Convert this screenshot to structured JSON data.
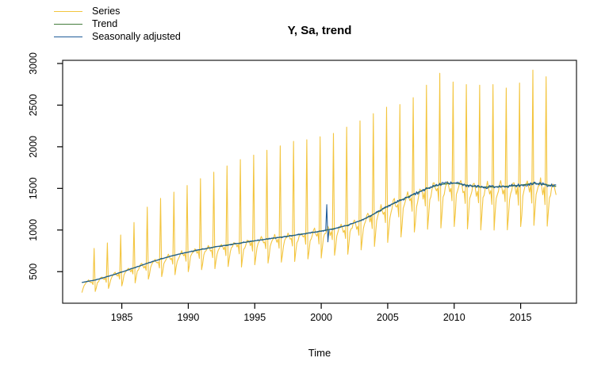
{
  "window": {
    "background": "#ffffff"
  },
  "chart_data": {
    "type": "line",
    "title": "Y, Sa, trend",
    "xlabel": "Time",
    "ylabel": "",
    "x_ticks": [
      1985,
      1990,
      1995,
      2000,
      2005,
      2010,
      2015
    ],
    "y_ticks": [
      500,
      1000,
      1500,
      2000,
      2500,
      3000
    ],
    "xlim": [
      1980.55,
      2019.2
    ],
    "ylim": [
      121,
      3038
    ],
    "grid": false,
    "legend_position": "top-left",
    "legend": [
      {
        "label": "Series",
        "color": "#F3C53F"
      },
      {
        "label": "Trend",
        "color": "#447C3C"
      },
      {
        "label": "Seasonally adjusted",
        "color": "#1F5C99"
      }
    ],
    "frequency": "monthly",
    "start": 1982.0,
    "end": 2017.667,
    "trend_anchors": [
      [
        1982.0,
        370
      ],
      [
        1983,
        400
      ],
      [
        1984,
        445
      ],
      [
        1985,
        495
      ],
      [
        1986,
        550
      ],
      [
        1987,
        605
      ],
      [
        1988,
        655
      ],
      [
        1989,
        700
      ],
      [
        1990,
        735
      ],
      [
        1991,
        768
      ],
      [
        1992,
        797
      ],
      [
        1993,
        822
      ],
      [
        1994,
        846
      ],
      [
        1995,
        870
      ],
      [
        1996,
        893
      ],
      [
        1997,
        915
      ],
      [
        1998,
        938
      ],
      [
        1999,
        962
      ],
      [
        2000,
        988
      ],
      [
        2001,
        1018
      ],
      [
        2002,
        1058
      ],
      [
        2003,
        1115
      ],
      [
        2004,
        1195
      ],
      [
        2005,
        1285
      ],
      [
        2006,
        1360
      ],
      [
        2007,
        1432
      ],
      [
        2008,
        1502
      ],
      [
        2009,
        1548
      ],
      [
        2010,
        1565
      ],
      [
        2011,
        1537
      ],
      [
        2012,
        1515
      ],
      [
        2013,
        1518
      ],
      [
        2014,
        1526
      ],
      [
        2015,
        1538
      ],
      [
        2016,
        1562
      ],
      [
        2017,
        1542
      ],
      [
        2017.667,
        1524
      ]
    ],
    "seasonal_factors": [
      0.67,
      0.78,
      0.9,
      0.94,
      0.97,
      1.01,
      1.03,
      0.99,
      0.94,
      0.97,
      0.86,
      2.0
    ],
    "dec_peaks": [
      [
        1982,
        780
      ],
      [
        1983,
        845
      ],
      [
        1984,
        940
      ],
      [
        1985,
        1090
      ],
      [
        1986,
        1275
      ],
      [
        1987,
        1380
      ],
      [
        1988,
        1455
      ],
      [
        1989,
        1535
      ],
      [
        1990,
        1618
      ],
      [
        1991,
        1695
      ],
      [
        1992,
        1770
      ],
      [
        1993,
        1845
      ],
      [
        1994,
        1900
      ],
      [
        1995,
        1958
      ],
      [
        1996,
        2010
      ],
      [
        1997,
        2065
      ],
      [
        1998,
        2085
      ],
      [
        1999,
        2120
      ],
      [
        2000,
        2160
      ],
      [
        2001,
        2235
      ],
      [
        2002,
        2311
      ],
      [
        2003,
        2397
      ],
      [
        2004,
        2476
      ],
      [
        2005,
        2507
      ],
      [
        2006,
        2590
      ],
      [
        2007,
        2740
      ],
      [
        2008,
        2883
      ],
      [
        2009,
        2778
      ],
      [
        2010,
        2746
      ],
      [
        2011,
        2740
      ],
      [
        2012,
        2746
      ],
      [
        2013,
        2705
      ],
      [
        2014,
        2765
      ],
      [
        2015,
        2921
      ],
      [
        2016,
        2841
      ]
    ],
    "sa_outliers": [
      {
        "t": 2000.417,
        "value": 1305
      },
      {
        "t": 2000.5,
        "value": 858
      }
    ],
    "noise": {
      "series_amp": 0.022,
      "sa_amp_early": 0.008,
      "sa_amp_late": 0.013,
      "seed": 42
    }
  },
  "axes": {
    "tick_color": "#000000",
    "box_color": "#1a1a1a"
  }
}
